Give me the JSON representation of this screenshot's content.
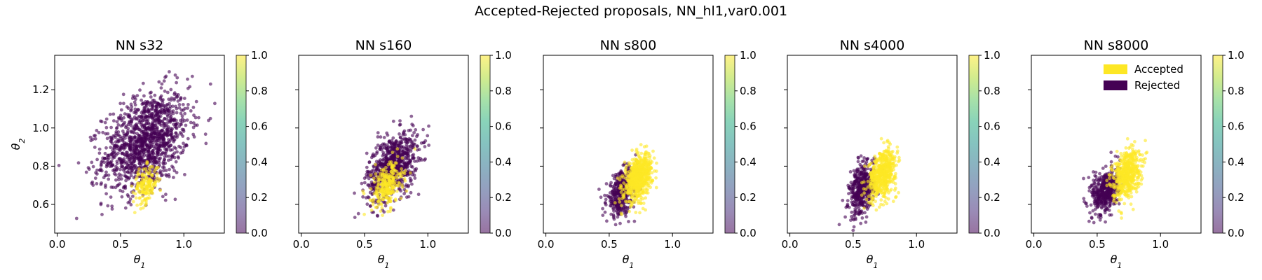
{
  "figure": {
    "title": "Accepted-Rejected proposals, NN_hl1,var0.001"
  },
  "legend": {
    "items": [
      {
        "label": "Accepted",
        "color": "#fde725"
      },
      {
        "label": "Rejected",
        "color": "#440154"
      }
    ],
    "placement": "top-right of last panel"
  },
  "colorbar": {
    "ticks": [
      "0.0",
      "0.2",
      "0.4",
      "0.6",
      "0.8",
      "1.0"
    ],
    "colormap": "viridis"
  },
  "chart_data": [
    {
      "type": "scatter",
      "title": "NN s32",
      "xlabel": "θ1",
      "ylabel": "θ2",
      "xlim": [
        -0.02,
        1.32
      ],
      "ylim": [
        0.45,
        1.38
      ],
      "xticks": [
        "0.0",
        "0.5",
        "1.0"
      ],
      "yticks": [
        "0.6",
        "0.8",
        "1.0",
        "1.2"
      ],
      "rejected": {
        "center": [
          0.7,
          0.93
        ],
        "spread": [
          0.17,
          0.13
        ],
        "corr": 0.35,
        "n": 1300
      },
      "accepted": {
        "center": [
          0.7,
          0.7
        ],
        "spread": [
          0.05,
          0.05
        ],
        "corr": 0.3,
        "n": 160
      }
    },
    {
      "type": "scatter",
      "title": "NN s160",
      "xlabel": "θ1",
      "ylabel": "",
      "xlim": [
        -0.02,
        1.32
      ],
      "ylim": [
        0.45,
        1.38
      ],
      "xticks": [
        "0.0",
        "0.5",
        "1.0"
      ],
      "yticks": [
        "0.6",
        "0.8",
        "1.0",
        "1.2"
      ],
      "rejected": {
        "center": [
          0.72,
          0.8
        ],
        "spread": [
          0.1,
          0.09
        ],
        "corr": 0.45,
        "n": 800
      },
      "accepted": {
        "center": [
          0.68,
          0.7
        ],
        "spread": [
          0.06,
          0.06
        ],
        "corr": 0.3,
        "n": 260
      }
    },
    {
      "type": "scatter",
      "title": "NN s800",
      "xlabel": "θ1",
      "ylabel": "",
      "xlim": [
        -0.02,
        1.32
      ],
      "ylim": [
        0.45,
        1.38
      ],
      "xticks": [
        "0.0",
        "0.5",
        "1.0"
      ],
      "yticks": [
        "0.6",
        "0.8",
        "1.0",
        "1.2"
      ],
      "rejected": {
        "center": [
          0.6,
          0.66
        ],
        "spread": [
          0.06,
          0.06
        ],
        "corr": 0.4,
        "n": 450
      },
      "accepted": {
        "center": [
          0.73,
          0.74
        ],
        "spread": [
          0.055,
          0.06
        ],
        "corr": 0.4,
        "n": 620
      }
    },
    {
      "type": "scatter",
      "title": "NN s4000",
      "xlabel": "θ1",
      "ylabel": "",
      "xlim": [
        -0.02,
        1.32
      ],
      "ylim": [
        0.45,
        1.38
      ],
      "xticks": [
        "0.0",
        "0.5",
        "1.0"
      ],
      "yticks": [
        "0.6",
        "0.8",
        "1.0",
        "1.2"
      ],
      "rejected": {
        "center": [
          0.57,
          0.68
        ],
        "spread": [
          0.05,
          0.07
        ],
        "corr": 0.35,
        "n": 450
      },
      "accepted": {
        "center": [
          0.73,
          0.76
        ],
        "spread": [
          0.055,
          0.065
        ],
        "corr": 0.35,
        "n": 520
      }
    },
    {
      "type": "scatter",
      "title": "NN s8000",
      "xlabel": "θ1",
      "ylabel": "",
      "xlim": [
        -0.02,
        1.32
      ],
      "ylim": [
        0.45,
        1.38
      ],
      "xticks": [
        "0.0",
        "0.5",
        "1.0"
      ],
      "yticks": [
        "0.6",
        "0.8",
        "1.0",
        "1.2"
      ],
      "rejected": {
        "center": [
          0.57,
          0.67
        ],
        "spread": [
          0.055,
          0.06
        ],
        "corr": 0.3,
        "n": 480
      },
      "accepted": {
        "center": [
          0.73,
          0.76
        ],
        "spread": [
          0.055,
          0.065
        ],
        "corr": 0.35,
        "n": 500
      }
    }
  ]
}
